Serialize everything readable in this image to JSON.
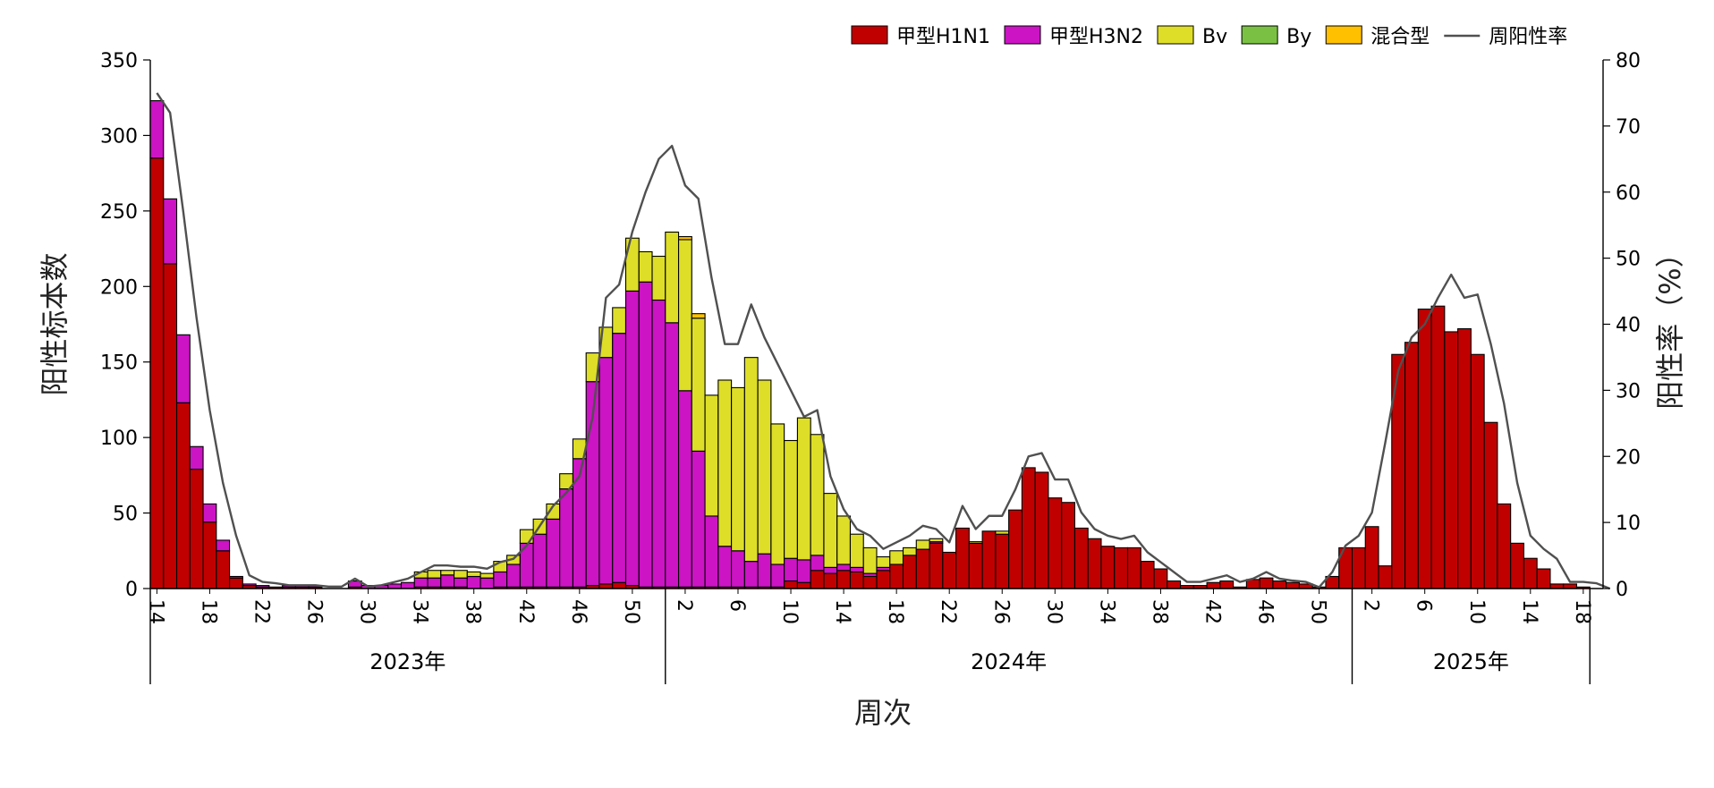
{
  "chart_data": {
    "type": "bar",
    "subtype": "stacked-bar-with-line",
    "xlabel": "周次",
    "ylabel": "阳性标本数",
    "y2label": "阳性率（%）",
    "ylim": [
      0,
      350
    ],
    "y2lim": [
      0,
      80
    ],
    "yticks": [
      0,
      50,
      100,
      150,
      200,
      250,
      300,
      350
    ],
    "y2ticks": [
      0,
      10,
      20,
      30,
      40,
      50,
      60,
      70,
      80
    ],
    "grid": false,
    "legend_position": "top-right",
    "x_week_ticks": [
      "14",
      "18",
      "22",
      "26",
      "30",
      "34",
      "38",
      "42",
      "46",
      "50",
      "2",
      "6",
      "10",
      "14",
      "18",
      "22",
      "26",
      "30",
      "34",
      "38",
      "42",
      "46",
      "50",
      "2",
      "6",
      "10",
      "14",
      "18"
    ],
    "x_week_tick_index": [
      0,
      4,
      8,
      12,
      16,
      20,
      24,
      28,
      32,
      36,
      40,
      44,
      48,
      52,
      56,
      60,
      64,
      68,
      72,
      76,
      80,
      84,
      88,
      92,
      96,
      100,
      104,
      108
    ],
    "years": [
      {
        "label": "2023年",
        "start": 0,
        "end": 39
      },
      {
        "label": "2024年",
        "start": 39,
        "end": 91
      },
      {
        "label": "2025年",
        "start": 91,
        "end": 109
      }
    ],
    "series": [
      {
        "name": "甲型H1N1",
        "kind": "bar",
        "color": "#C00000",
        "values": [
          285,
          215,
          123,
          79,
          44,
          25,
          7,
          2,
          1,
          1,
          1,
          1,
          1,
          0,
          0,
          1,
          0,
          0,
          0,
          0,
          1,
          1,
          1,
          1,
          0,
          0,
          1,
          1,
          1,
          1,
          1,
          1,
          1,
          2,
          3,
          4,
          2,
          1,
          1,
          1,
          1,
          1,
          1,
          1,
          1,
          1,
          1,
          1,
          5,
          4,
          12,
          10,
          12,
          11,
          8,
          12,
          16,
          22,
          26,
          30,
          24,
          40,
          30,
          38,
          36,
          52,
          80,
          77,
          60,
          57,
          40,
          33,
          28,
          27,
          27,
          18,
          13,
          5,
          2,
          2,
          4,
          5,
          1,
          6,
          7,
          5,
          4,
          3,
          1,
          8,
          27,
          27,
          41,
          15,
          155,
          163,
          185,
          187,
          170,
          172,
          155,
          110,
          56,
          30,
          20,
          13,
          3,
          3,
          1,
          0
        ]
      },
      {
        "name": "甲型H3N2",
        "kind": "bar",
        "color": "#CC14C4",
        "values": [
          38,
          43,
          45,
          15,
          12,
          7,
          1,
          1,
          1,
          0,
          1,
          1,
          1,
          0,
          0,
          4,
          2,
          2,
          3,
          4,
          6,
          6,
          8,
          6,
          8,
          7,
          10,
          15,
          29,
          35,
          45,
          65,
          85,
          135,
          150,
          165,
          195,
          202,
          190,
          175,
          130,
          90,
          47,
          27,
          24,
          17,
          22,
          15,
          15,
          15,
          10,
          4,
          4,
          3,
          2,
          2,
          0,
          0,
          0,
          1,
          0,
          0,
          0,
          0,
          0,
          0,
          0,
          0,
          0,
          0,
          0,
          0,
          0,
          0,
          0,
          0,
          0,
          0,
          0,
          0,
          0,
          0,
          0,
          0,
          0,
          0,
          0,
          0,
          0,
          0,
          0,
          0,
          0,
          0,
          0,
          0,
          0,
          0,
          0,
          0,
          0,
          0,
          0,
          0,
          0,
          0,
          0,
          0,
          0,
          0
        ]
      },
      {
        "name": "Bv",
        "kind": "bar",
        "color": "#DEDE28",
        "values": [
          0,
          0,
          0,
          0,
          0,
          0,
          0,
          0,
          0,
          0,
          0,
          0,
          0,
          0,
          0,
          0,
          0,
          0,
          0,
          0,
          4,
          5,
          3,
          5,
          3,
          3,
          7,
          6,
          9,
          10,
          10,
          10,
          13,
          19,
          20,
          17,
          35,
          20,
          29,
          60,
          100,
          88,
          80,
          110,
          108,
          135,
          115,
          93,
          78,
          94,
          80,
          49,
          32,
          22,
          17,
          7,
          9,
          5,
          6,
          2,
          0,
          0,
          1,
          0,
          2,
          0,
          0,
          0,
          0,
          0,
          0,
          0,
          0,
          0,
          0,
          0,
          0,
          0,
          0,
          0,
          0,
          0,
          0,
          0,
          0,
          0,
          0,
          0,
          0,
          0,
          0,
          0,
          0,
          0,
          0,
          0,
          0,
          0,
          0,
          0,
          0,
          0,
          0,
          0,
          0,
          0,
          0,
          0,
          0,
          0
        ]
      },
      {
        "name": "By",
        "kind": "bar",
        "color": "#7AC143",
        "values": [
          0,
          0,
          0,
          0,
          0,
          0,
          0,
          0,
          0,
          0,
          0,
          0,
          0,
          0,
          0,
          0,
          0,
          0,
          0,
          0,
          0,
          0,
          0,
          0,
          0,
          0,
          0,
          0,
          0,
          0,
          0,
          0,
          0,
          0,
          0,
          0,
          0,
          0,
          0,
          0,
          0,
          0,
          0,
          0,
          0,
          0,
          0,
          0,
          0,
          0,
          0,
          0,
          0,
          0,
          0,
          0,
          0,
          0,
          0,
          0,
          0,
          0,
          0,
          0,
          0,
          0,
          0,
          0,
          0,
          0,
          0,
          0,
          0,
          0,
          0,
          0,
          0,
          0,
          0,
          0,
          0,
          0,
          0,
          0,
          0,
          0,
          0,
          0,
          0,
          0,
          0,
          0,
          0,
          0,
          0,
          0,
          0,
          0,
          0,
          0,
          0,
          0,
          0,
          0,
          0,
          0,
          0,
          0,
          0,
          0
        ]
      },
      {
        "name": "混合型",
        "kind": "bar",
        "color": "#FFC000",
        "values": [
          0,
          0,
          0,
          0,
          0,
          0,
          0,
          0,
          0,
          0,
          0,
          0,
          0,
          0,
          0,
          0,
          0,
          0,
          0,
          0,
          0,
          0,
          0,
          0,
          0,
          0,
          0,
          0,
          0,
          0,
          0,
          0,
          0,
          0,
          0,
          0,
          0,
          0,
          0,
          0,
          2,
          3,
          0,
          0,
          0,
          0,
          0,
          0,
          0,
          0,
          0,
          0,
          0,
          0,
          0,
          0,
          0,
          0,
          0,
          0,
          0,
          0,
          0,
          0,
          0,
          0,
          0,
          0,
          0,
          0,
          0,
          0,
          0,
          0,
          0,
          0,
          0,
          0,
          0,
          0,
          0,
          0,
          0,
          0,
          0,
          0,
          0,
          0,
          0,
          0,
          0,
          0,
          0,
          0,
          0,
          0,
          0,
          0,
          0,
          0,
          0,
          0,
          0,
          0,
          0,
          0,
          0,
          0,
          0,
          0
        ]
      },
      {
        "name": "周阳性率",
        "kind": "line",
        "color": "#505050",
        "axis": "right",
        "values": [
          75,
          72,
          57,
          41,
          27,
          16,
          8,
          2,
          1,
          0.8,
          0.5,
          0.5,
          0.5,
          0.3,
          0.3,
          1.5,
          0.3,
          0.5,
          1,
          1.5,
          2.5,
          3.5,
          3.5,
          3.3,
          3.3,
          3,
          4,
          4.5,
          6.5,
          9.5,
          12.5,
          14.5,
          17,
          26,
          44,
          46,
          54,
          60,
          65,
          67,
          61,
          59,
          47,
          37,
          37,
          43,
          38,
          34,
          30,
          26,
          27,
          17,
          12,
          9,
          8,
          6,
          7,
          8,
          9.5,
          9,
          7,
          12.5,
          9,
          11,
          11,
          15,
          20,
          20.5,
          16.5,
          16.5,
          11.5,
          9,
          8,
          7.5,
          8,
          5.5,
          4,
          2.5,
          1,
          1,
          1.5,
          2,
          1,
          1.5,
          2.5,
          1.5,
          1.2,
          1,
          0.2,
          2.5,
          6.5,
          8,
          11.5,
          22,
          33,
          38,
          40,
          44,
          47.5,
          44,
          44.5,
          37,
          28,
          16,
          8,
          6,
          4.5,
          1,
          1,
          0.8,
          0
        ]
      }
    ],
    "legend": [
      "甲型H1N1",
      "甲型H3N2",
      "Bv",
      "By",
      "混合型",
      "周阳性率"
    ]
  }
}
